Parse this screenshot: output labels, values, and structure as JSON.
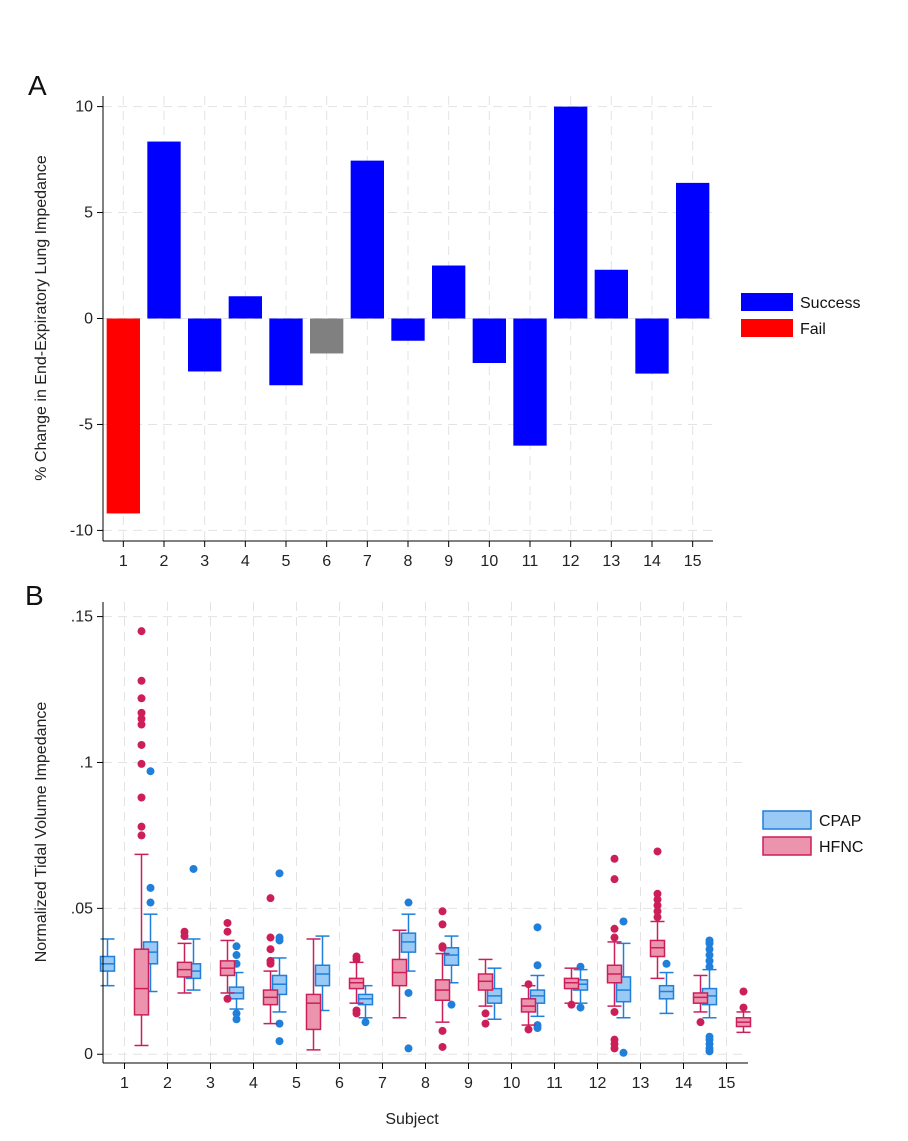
{
  "chart_data": [
    {
      "type": "bar",
      "panel_label": "A",
      "ylabel": "% Change in End-Expiratory Lung Impedance",
      "xlabel": "",
      "categories": [
        "1",
        "2",
        "3",
        "4",
        "5",
        "6",
        "7",
        "8",
        "9",
        "10",
        "11",
        "12",
        "13",
        "14",
        "15"
      ],
      "values": [
        -9.2,
        8.35,
        -2.5,
        1.05,
        -3.15,
        -1.65,
        7.45,
        -1.05,
        2.5,
        -2.1,
        -6.0,
        10.0,
        2.3,
        -2.6,
        6.4
      ],
      "outcome": [
        "Fail",
        "Success",
        "Success",
        "Success",
        "Success",
        "Unknown",
        "Success",
        "Success",
        "Success",
        "Success",
        "Success",
        "Success",
        "Success",
        "Success",
        "Success"
      ],
      "ylim": [
        -10.5,
        10.5
      ],
      "yticks": [
        -10,
        -5,
        0,
        5,
        10
      ],
      "ytick_labels": [
        "-10",
        "-5",
        "0",
        "5",
        "10"
      ],
      "grid": true,
      "legend_position": "right",
      "legend": [
        {
          "label": "Success",
          "color": "#0000ff"
        },
        {
          "label": "Fail",
          "color": "#ff0000"
        }
      ],
      "colors": {
        "Success": "#0000ff",
        "Fail": "#ff0000",
        "Unknown": "#808080"
      }
    },
    {
      "type": "box",
      "panel_label": "B",
      "ylabel": "Normalized Tidal Volume Impedance",
      "xlabel": "Subject",
      "categories": [
        "1",
        "2",
        "3",
        "4",
        "5",
        "6",
        "7",
        "8",
        "9",
        "10",
        "11",
        "12",
        "13",
        "14",
        "15"
      ],
      "ylim": [
        -0.003,
        0.155
      ],
      "yticks": [
        0,
        0.05,
        0.1,
        0.15
      ],
      "ytick_labels": [
        "0",
        ".05",
        ".1",
        ".15"
      ],
      "grid": true,
      "legend_position": "right",
      "series": [
        {
          "name": "CPAP",
          "fill": "#99c9f5",
          "stroke": "#1f7fdb",
          "boxes": [
            {
              "min": 0.0235,
              "q1": 0.0285,
              "median": 0.031,
              "q3": 0.0335,
              "max": 0.0395,
              "outliers": []
            },
            {
              "min": 0.0215,
              "q1": 0.031,
              "median": 0.035,
              "q3": 0.0385,
              "max": 0.048,
              "outliers": [
                0.052,
                0.057,
                0.097
              ]
            },
            {
              "min": 0.022,
              "q1": 0.026,
              "median": 0.0285,
              "q3": 0.031,
              "max": 0.0395,
              "outliers": [
                0.0635
              ]
            },
            {
              "min": 0.0155,
              "q1": 0.019,
              "median": 0.021,
              "q3": 0.023,
              "max": 0.028,
              "outliers": [
                0.012,
                0.014,
                0.031,
                0.034,
                0.037
              ]
            },
            {
              "min": 0.0145,
              "q1": 0.0205,
              "median": 0.024,
              "q3": 0.027,
              "max": 0.033,
              "outliers": [
                0.0045,
                0.0105,
                0.039,
                0.04,
                0.062
              ]
            },
            {
              "min": 0.015,
              "q1": 0.0235,
              "median": 0.0275,
              "q3": 0.0305,
              "max": 0.0405,
              "outliers": []
            },
            {
              "min": 0.0125,
              "q1": 0.017,
              "median": 0.019,
              "q3": 0.0205,
              "max": 0.0235,
              "outliers": [
                0.011
              ]
            },
            {
              "min": 0.0285,
              "q1": 0.035,
              "median": 0.0385,
              "q3": 0.0415,
              "max": 0.048,
              "outliers": [
                0.002,
                0.021,
                0.052
              ]
            },
            {
              "min": 0.0245,
              "q1": 0.0305,
              "median": 0.034,
              "q3": 0.0365,
              "max": 0.0405,
              "outliers": [
                0.017
              ]
            },
            {
              "min": 0.012,
              "q1": 0.0175,
              "median": 0.02,
              "q3": 0.0225,
              "max": 0.0295,
              "outliers": []
            },
            {
              "min": 0.013,
              "q1": 0.0175,
              "median": 0.02,
              "q3": 0.022,
              "max": 0.027,
              "outliers": [
                0.009,
                0.01,
                0.0305,
                0.0435
              ]
            },
            {
              "min": 0.0175,
              "q1": 0.022,
              "median": 0.024,
              "q3": 0.0255,
              "max": 0.029,
              "outliers": [
                0.016,
                0.03
              ]
            },
            {
              "min": 0.0125,
              "q1": 0.018,
              "median": 0.022,
              "q3": 0.0265,
              "max": 0.038,
              "outliers": [
                0.0005,
                0.0455
              ]
            },
            {
              "min": 0.014,
              "q1": 0.019,
              "median": 0.0215,
              "q3": 0.0235,
              "max": 0.028,
              "outliers": [
                0.031
              ]
            },
            {
              "min": 0.0125,
              "q1": 0.017,
              "median": 0.02,
              "q3": 0.0225,
              "max": 0.029,
              "outliers": [
                0.001,
                0.002,
                0.0035,
                0.005,
                0.006,
                0.03,
                0.032,
                0.034,
                0.036,
                0.038,
                0.039
              ]
            }
          ]
        },
        {
          "name": "HFNC",
          "fill": "#ec93ae",
          "stroke": "#cc1f5a",
          "boxes": [
            {
              "min": 0.003,
              "q1": 0.0135,
              "median": 0.0225,
              "q3": 0.036,
              "max": 0.0685,
              "outliers": [
                0.075,
                0.078,
                0.088,
                0.0995,
                0.106,
                0.113,
                0.115,
                0.117,
                0.122,
                0.128,
                0.145
              ]
            },
            {
              "min": 0.021,
              "q1": 0.0265,
              "median": 0.029,
              "q3": 0.0315,
              "max": 0.038,
              "outliers": [
                0.0405,
                0.042
              ]
            },
            {
              "min": 0.021,
              "q1": 0.027,
              "median": 0.0295,
              "q3": 0.032,
              "max": 0.039,
              "outliers": [
                0.019,
                0.042,
                0.045
              ]
            },
            {
              "min": 0.0105,
              "q1": 0.017,
              "median": 0.0195,
              "q3": 0.022,
              "max": 0.0285,
              "outliers": [
                0.031,
                0.032,
                0.036,
                0.04,
                0.0535
              ]
            },
            {
              "min": 0.0015,
              "q1": 0.0085,
              "median": 0.0175,
              "q3": 0.0205,
              "max": 0.0395,
              "outliers": []
            },
            {
              "min": 0.0175,
              "q1": 0.0225,
              "median": 0.0245,
              "q3": 0.026,
              "max": 0.0315,
              "outliers": [
                0.014,
                0.015,
                0.0325,
                0.0335
              ]
            },
            {
              "min": 0.0125,
              "q1": 0.0235,
              "median": 0.028,
              "q3": 0.0325,
              "max": 0.0425,
              "outliers": []
            },
            {
              "min": 0.011,
              "q1": 0.0185,
              "median": 0.022,
              "q3": 0.0255,
              "max": 0.0345,
              "outliers": [
                0.0025,
                0.008,
                0.0365,
                0.037,
                0.0445,
                0.049
              ]
            },
            {
              "min": 0.0165,
              "q1": 0.022,
              "median": 0.025,
              "q3": 0.0275,
              "max": 0.0325,
              "outliers": [
                0.0105,
                0.014
              ]
            },
            {
              "min": 0.01,
              "q1": 0.0145,
              "median": 0.0165,
              "q3": 0.019,
              "max": 0.0235,
              "outliers": [
                0.0085,
                0.024
              ]
            },
            {
              "min": 0.0175,
              "q1": 0.0225,
              "median": 0.0245,
              "q3": 0.026,
              "max": 0.0295,
              "outliers": [
                0.017
              ]
            },
            {
              "min": 0.0165,
              "q1": 0.0245,
              "median": 0.0275,
              "q3": 0.0305,
              "max": 0.0385,
              "outliers": [
                0.002,
                0.0035,
                0.005,
                0.0145,
                0.04,
                0.043,
                0.06,
                0.067
              ]
            },
            {
              "min": 0.026,
              "q1": 0.0335,
              "median": 0.0365,
              "q3": 0.039,
              "max": 0.0455,
              "outliers": [
                0.047,
                0.049,
                0.051,
                0.053,
                0.055,
                0.0695
              ]
            },
            {
              "min": 0.0145,
              "q1": 0.0175,
              "median": 0.0195,
              "q3": 0.021,
              "max": 0.027,
              "outliers": [
                0.011
              ]
            },
            {
              "min": 0.0075,
              "q1": 0.0095,
              "median": 0.011,
              "q3": 0.0125,
              "max": 0.0145,
              "outliers": [
                0.016,
                0.0215
              ]
            }
          ]
        }
      ]
    }
  ]
}
